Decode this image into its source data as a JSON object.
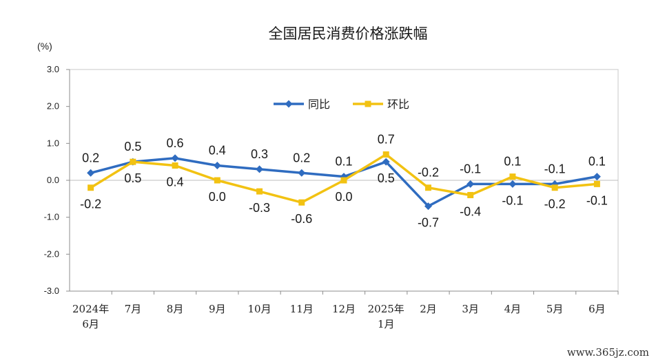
{
  "chart_data": {
    "type": "line",
    "title": "全国居民消费价格涨跌幅",
    "unit_label": "(%)",
    "ylim": [
      -3.0,
      3.0
    ],
    "yticks": [
      "3.0",
      "2.0",
      "1.0",
      "0.0",
      "-1.0",
      "-2.0",
      "-3.0"
    ],
    "categories": [
      [
        "2024年",
        "6月"
      ],
      [
        "7月"
      ],
      [
        "8月"
      ],
      [
        "9月"
      ],
      [
        "10月"
      ],
      [
        "11月"
      ],
      [
        "12月"
      ],
      [
        "2025年",
        "1月"
      ],
      [
        "2月"
      ],
      [
        "3月"
      ],
      [
        "4月"
      ],
      [
        "5月"
      ],
      [
        "6月"
      ]
    ],
    "series": [
      {
        "name": "同比",
        "color": "#2F6CC0",
        "marker": "diamond",
        "values": [
          0.2,
          0.5,
          0.6,
          0.4,
          0.3,
          0.2,
          0.1,
          0.5,
          -0.7,
          -0.1,
          -0.1,
          -0.1,
          0.1
        ],
        "labels": [
          "0.2",
          "0.5",
          "0.6",
          "0.4",
          "0.3",
          "0.2",
          "0.1",
          "0.5",
          "-0.7",
          "-0.1",
          "-0.1",
          "-0.1",
          "0.1"
        ]
      },
      {
        "name": "环比",
        "color": "#F2C212",
        "marker": "square",
        "values": [
          -0.2,
          0.5,
          0.4,
          0.0,
          -0.3,
          -0.6,
          0.0,
          0.7,
          -0.2,
          -0.4,
          0.1,
          -0.2,
          -0.1
        ],
        "labels": [
          "-0.2",
          "0.5",
          "0.4",
          "0.0",
          "-0.3",
          "-0.6",
          "0.0",
          "0.7",
          "-0.2",
          "-0.4",
          "0.1",
          "-0.2",
          "-0.1"
        ]
      }
    ],
    "legend_position": "top-center",
    "grid": false
  },
  "watermark": "www.365jz.com"
}
